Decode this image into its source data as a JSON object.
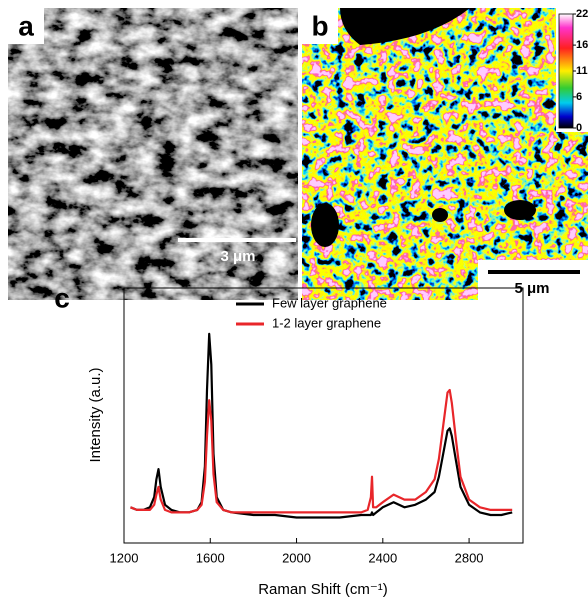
{
  "panel_a": {
    "label": "a",
    "scale_bar": "3 μm"
  },
  "panel_b": {
    "label": "b",
    "scale_bar": "5 μm",
    "colorbar": {
      "range": [
        0,
        22
      ],
      "ticks": [
        0,
        6,
        11,
        16,
        22
      ]
    }
  },
  "chart_data": {
    "type": "line",
    "panel_label": "c",
    "x_label": "Raman Shift (cm⁻¹)",
    "y_label": "Intensity (a.u.)",
    "x": [
      1230,
      1260,
      1290,
      1320,
      1340,
      1350,
      1360,
      1370,
      1390,
      1420,
      1460,
      1500,
      1540,
      1560,
      1575,
      1585,
      1595,
      1605,
      1615,
      1630,
      1660,
      1700,
      1800,
      1900,
      2000,
      2100,
      2200,
      2300,
      2330,
      2345,
      2350,
      2355,
      2370,
      2400,
      2450,
      2500,
      2550,
      2600,
      2640,
      2660,
      2680,
      2700,
      2710,
      2720,
      2740,
      2760,
      2800,
      2850,
      2900,
      2950,
      3000
    ],
    "series": [
      {
        "name": "Few layer graphene",
        "color": "#000000",
        "values": [
          14,
          13,
          13,
          14,
          18,
          25,
          29,
          22,
          15,
          13,
          12,
          12,
          13,
          16,
          30,
          60,
          82,
          70,
          35,
          18,
          13,
          12,
          11,
          11,
          10,
          10,
          10,
          11,
          11,
          11,
          12,
          11,
          12,
          14,
          16,
          14,
          15,
          17,
          20,
          26,
          35,
          44,
          45,
          42,
          32,
          22,
          15,
          12,
          11,
          11,
          12
        ]
      },
      {
        "name": "1-2 layer graphene",
        "color": "#e8262a",
        "values": [
          14,
          13,
          13,
          13,
          15,
          19,
          22,
          17,
          13,
          12,
          12,
          12,
          13,
          15,
          24,
          42,
          56,
          48,
          27,
          16,
          13,
          12,
          12,
          12,
          12,
          12,
          12,
          12,
          13,
          18,
          26,
          14,
          14,
          16,
          19,
          17,
          17,
          20,
          25,
          33,
          46,
          59,
          60,
          55,
          40,
          26,
          17,
          14,
          13,
          13,
          13
        ]
      }
    ],
    "xlim": [
      1200,
      3050
    ],
    "ylim": [
      0,
      100
    ],
    "xticks": [
      1200,
      1600,
      2000,
      2400,
      2800
    ],
    "legend": "upper center"
  }
}
